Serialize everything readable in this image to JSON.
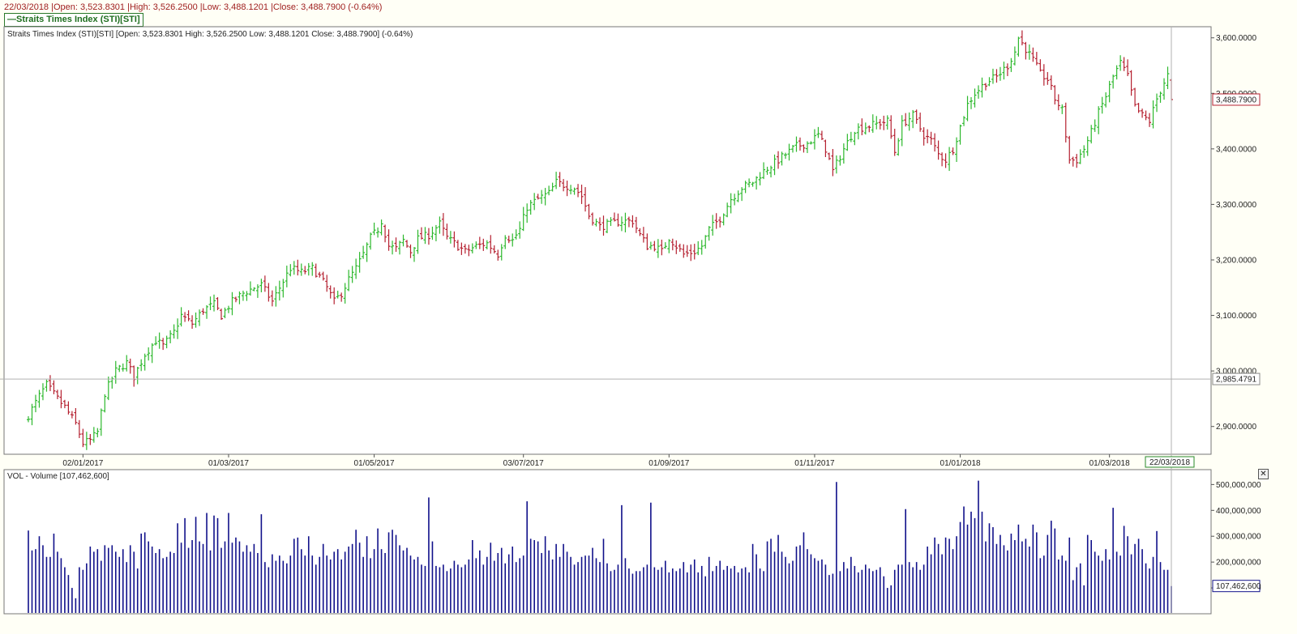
{
  "header": {
    "summary": "22/03/2018 |Open: 3,523.8301 |High: 3,526.2500 |Low: 3,488.1201 |Close: 3,488.7900 (-0.64%)",
    "legend_label": "Straits Times Index (STI)[STI]"
  },
  "price_panel": {
    "caption": "Straits Times Index (STI)[STI] [Open: 3,523.8301  High: 3,526.2500  Low: 3,488.1201  Close: 3,488.7900] (-0.64%)",
    "last_price_label": "3,488.7900",
    "crosshair_label": "2,985.4791",
    "crosshair_value": 2985.4791,
    "last_price_value": 3488.79,
    "date_cursor_label": "22/03/2018"
  },
  "volume_panel": {
    "caption": "VOL - Volume [107,462,600]",
    "last_volume_label": "107,462,600",
    "last_volume_value": 107462600,
    "close_glyph": "✕"
  },
  "colors": {
    "up": "#2db82d",
    "down": "#b52030",
    "volume": "#10108a",
    "background": "#fffff6",
    "grid": "#c8c8c8"
  },
  "chart_data": [
    {
      "type": "ohlc",
      "title": "Straits Times Index (STI)[STI]",
      "ylim": [
        2850,
        3620
      ],
      "yticks": [
        2900,
        3000,
        3100,
        3200,
        3300,
        3400,
        3500,
        3600
      ],
      "ytick_labels": [
        "2,900.0000",
        "3,000.0000",
        "3,100.0000",
        "3,200.0000",
        "3,300.0000",
        "3,400.0000",
        "3,500.0000",
        "3,600.0000"
      ],
      "xticks": [
        "02/01/2017",
        "01/03/2017",
        "01/05/2017",
        "03/07/2017",
        "01/09/2017",
        "01/11/2017",
        "01/01/2018",
        "01/03/2018"
      ],
      "xtick_bar_index": [
        15,
        55,
        95,
        136,
        176,
        216,
        256,
        297
      ],
      "anchors": [
        [
          0,
          2920
        ],
        [
          3,
          2955
        ],
        [
          5,
          2975
        ],
        [
          8,
          2950
        ],
        [
          10,
          2935
        ],
        [
          13,
          2905
        ],
        [
          15,
          2870
        ],
        [
          17,
          2875
        ],
        [
          19,
          2890
        ],
        [
          21,
          2960
        ],
        [
          24,
          3000
        ],
        [
          27,
          3015
        ],
        [
          29,
          2990
        ],
        [
          32,
          3030
        ],
        [
          35,
          3055
        ],
        [
          37,
          3045
        ],
        [
          40,
          3070
        ],
        [
          42,
          3100
        ],
        [
          45,
          3085
        ],
        [
          48,
          3110
        ],
        [
          51,
          3120
        ],
        [
          53,
          3100
        ],
        [
          56,
          3125
        ],
        [
          59,
          3140
        ],
        [
          62,
          3150
        ],
        [
          64,
          3155
        ],
        [
          67,
          3125
        ],
        [
          69,
          3150
        ],
        [
          72,
          3185
        ],
        [
          75,
          3178
        ],
        [
          78,
          3185
        ],
        [
          80,
          3170
        ],
        [
          82,
          3150
        ],
        [
          84,
          3125
        ],
        [
          86,
          3140
        ],
        [
          88,
          3165
        ],
        [
          90,
          3185
        ],
        [
          92,
          3210
        ],
        [
          94,
          3240
        ],
        [
          96,
          3255
        ],
        [
          97,
          3270
        ],
        [
          99,
          3225
        ],
        [
          101,
          3220
        ],
        [
          103,
          3235
        ],
        [
          105,
          3215
        ],
        [
          107,
          3238
        ],
        [
          110,
          3245
        ],
        [
          113,
          3265
        ],
        [
          115,
          3240
        ],
        [
          117,
          3230
        ],
        [
          120,
          3215
        ],
        [
          123,
          3225
        ],
        [
          126,
          3230
        ],
        [
          129,
          3210
        ],
        [
          131,
          3245
        ],
        [
          133,
          3235
        ],
        [
          135,
          3255
        ],
        [
          137,
          3295
        ],
        [
          140,
          3310
        ],
        [
          143,
          3320
        ],
        [
          145,
          3340
        ],
        [
          147,
          3335
        ],
        [
          150,
          3330
        ],
        [
          152,
          3315
        ],
        [
          154,
          3280
        ],
        [
          157,
          3260
        ],
        [
          160,
          3265
        ],
        [
          163,
          3270
        ],
        [
          166,
          3270
        ],
        [
          168,
          3245
        ],
        [
          170,
          3225
        ],
        [
          172,
          3225
        ],
        [
          174,
          3215
        ],
        [
          176,
          3240
        ],
        [
          178,
          3225
        ],
        [
          180,
          3210
        ],
        [
          183,
          3215
        ],
        [
          185,
          3225
        ],
        [
          187,
          3255
        ],
        [
          190,
          3275
        ],
        [
          193,
          3310
        ],
        [
          196,
          3330
        ],
        [
          199,
          3340
        ],
        [
          202,
          3360
        ],
        [
          205,
          3375
        ],
        [
          208,
          3390
        ],
        [
          211,
          3405
        ],
        [
          214,
          3410
        ],
        [
          217,
          3425
        ],
        [
          219,
          3400
        ],
        [
          221,
          3360
        ],
        [
          224,
          3400
        ],
        [
          227,
          3435
        ],
        [
          230,
          3440
        ],
        [
          233,
          3445
        ],
        [
          236,
          3450
        ],
        [
          238,
          3395
        ],
        [
          240,
          3445
        ],
        [
          243,
          3460
        ],
        [
          246,
          3425
        ],
        [
          248,
          3415
        ],
        [
          250,
          3390
        ],
        [
          252,
          3380
        ],
        [
          254,
          3400
        ],
        [
          256,
          3440
        ],
        [
          258,
          3480
        ],
        [
          260,
          3500
        ],
        [
          263,
          3520
        ],
        [
          266,
          3530
        ],
        [
          269,
          3550
        ],
        [
          271,
          3575
        ],
        [
          272,
          3600
        ],
        [
          274,
          3580
        ],
        [
          276,
          3560
        ],
        [
          278,
          3535
        ],
        [
          280,
          3525
        ],
        [
          282,
          3490
        ],
        [
          284,
          3470
        ],
        [
          286,
          3380
        ],
        [
          288,
          3380
        ],
        [
          290,
          3400
        ],
        [
          292,
          3430
        ],
        [
          294,
          3465
        ],
        [
          296,
          3495
        ],
        [
          298,
          3530
        ],
        [
          300,
          3555
        ],
        [
          302,
          3530
        ],
        [
          304,
          3475
        ],
        [
          306,
          3460
        ],
        [
          308,
          3450
        ],
        [
          310,
          3490
        ],
        [
          312,
          3520
        ],
        [
          314,
          3545
        ],
        [
          316,
          3525
        ],
        [
          318,
          3510
        ],
        [
          320,
          3510
        ],
        [
          321,
          3489
        ]
      ],
      "last_bar": {
        "date": "22/03/2018",
        "open": 3523.8301,
        "high": 3526.25,
        "low": 3488.1201,
        "close": 3488.79
      }
    },
    {
      "type": "bar",
      "title": "VOL - Volume",
      "ylim": [
        0,
        520000000
      ],
      "yticks": [
        100000000,
        200000000,
        300000000,
        400000000,
        500000000
      ],
      "ytick_labels": [
        "100,000,000",
        "200,000,000",
        "300,000,000",
        "400,000,000",
        "500,000,000"
      ],
      "values_millions": [
        322,
        245,
        250,
        300,
        265,
        220,
        220,
        310,
        240,
        215,
        180,
        150,
        100,
        60,
        180,
        170,
        195,
        260,
        240,
        250,
        205,
        265,
        255,
        265,
        240,
        220,
        250,
        200,
        265,
        240,
        175,
        310,
        315,
        280,
        260,
        235,
        250,
        215,
        220,
        240,
        235,
        350,
        275,
        370,
        255,
        285,
        375,
        280,
        270,
        390,
        245,
        380,
        370,
        255,
        280,
        390,
        275,
        295,
        280,
        240,
        265,
        240,
        270,
        235,
        385,
        200,
        180,
        230,
        205,
        225,
        205,
        195,
        225,
        290,
        295,
        250,
        225,
        300,
        225,
        190,
        220,
        270,
        225,
        210,
        240,
        250,
        210,
        240,
        260,
        270,
        325,
        275,
        220,
        300,
        215,
        250,
        330,
        250,
        235,
        315,
        325,
        305,
        265,
        245,
        255,
        225,
        210,
        220,
        190,
        185,
        450,
        280,
        185,
        180,
        190,
        165,
        175,
        205,
        190,
        180,
        190,
        210,
        285,
        215,
        245,
        190,
        220,
        275,
        205,
        235,
        255,
        195,
        230,
        260,
        200,
        215,
        225,
        435,
        290,
        285,
        280,
        235,
        300,
        245,
        210,
        270,
        220,
        270,
        240,
        220,
        190,
        200,
        220,
        225,
        225,
        255,
        215,
        200,
        290,
        195,
        165,
        170,
        190,
        420,
        215,
        175,
        155,
        165,
        165,
        180,
        190,
        430,
        180,
        170,
        180,
        205,
        160,
        175,
        165,
        175,
        200,
        160,
        190,
        210,
        160,
        185,
        145,
        220,
        165,
        185,
        205,
        170,
        185,
        175,
        185,
        160,
        175,
        180,
        160,
        270,
        230,
        175,
        165,
        280,
        290,
        240,
        305,
        240,
        220,
        195,
        205,
        260,
        265,
        315,
        250,
        230,
        215,
        205,
        210,
        190,
        150,
        155,
        510,
        165,
        200,
        175,
        220,
        185,
        160,
        170,
        190,
        175,
        165,
        170,
        180,
        145,
        100,
        110,
        170,
        190,
        190,
        405,
        200,
        180,
        200,
        170,
        190,
        260,
        230,
        295,
        270,
        230,
        295,
        290,
        250,
        300,
        355,
        415,
        345,
        395,
        370,
        515,
        395,
        280,
        350,
        335,
        270,
        305,
        265,
        245,
        310,
        285,
        345,
        280,
        290,
        260,
        345,
        315,
        215,
        225,
        305,
        360,
        330,
        210,
        225,
        205,
        295,
        130,
        180,
        195,
        110,
        305,
        285,
        240,
        225,
        205,
        250,
        210,
        410,
        240,
        225,
        340,
        300,
        230,
        270,
        290,
        250,
        195,
        175,
        220,
        320,
        200,
        170,
        170,
        107
      ]
    }
  ]
}
